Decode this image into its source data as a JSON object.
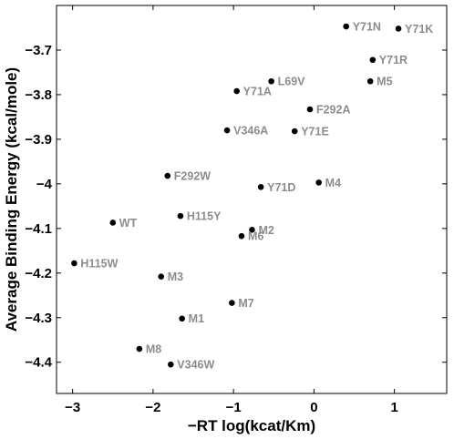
{
  "chart_data": {
    "type": "scatter",
    "xlabel": "−RT log(kcat/Km)",
    "ylabel": "Average Binding Energy (kcal/mole)",
    "xlim": [
      -3.2,
      1.65
    ],
    "ylim": [
      -4.47,
      -3.6
    ],
    "x_ticks": [
      -3,
      -2,
      -1,
      0,
      1
    ],
    "y_ticks": [
      -3.7,
      -3.8,
      -3.9,
      -4,
      -4.1,
      -4.2,
      -4.3,
      -4.4
    ],
    "x_tick_labels": [
      "−3",
      "−2",
      "−1",
      "0",
      "1"
    ],
    "y_tick_labels": [
      "−3.7",
      "−3.8",
      "−3.9",
      "−4",
      "−4.1",
      "−4.2",
      "−4.3",
      "−4.4"
    ],
    "grid": false,
    "points": [
      {
        "label": "Y71N",
        "x": 0.4,
        "y": -3.647
      },
      {
        "label": "Y71K",
        "x": 1.05,
        "y": -3.652
      },
      {
        "label": "Y71R",
        "x": 0.73,
        "y": -3.722
      },
      {
        "label": "L69V",
        "x": -0.53,
        "y": -3.77
      },
      {
        "label": "M5",
        "x": 0.7,
        "y": -3.77
      },
      {
        "label": "Y71A",
        "x": -0.96,
        "y": -3.792
      },
      {
        "label": "F292A",
        "x": -0.05,
        "y": -3.833
      },
      {
        "label": "V346A",
        "x": -1.08,
        "y": -3.88
      },
      {
        "label": "Y71E",
        "x": -0.24,
        "y": -3.882
      },
      {
        "label": "F292W",
        "x": -1.82,
        "y": -3.982
      },
      {
        "label": "M4",
        "x": 0.06,
        "y": -3.997
      },
      {
        "label": "Y71D",
        "x": -0.66,
        "y": -4.007
      },
      {
        "label": "H115Y",
        "x": -1.66,
        "y": -4.072
      },
      {
        "label": "WT",
        "x": -2.5,
        "y": -4.087
      },
      {
        "label": "M2",
        "x": -0.77,
        "y": -4.103
      },
      {
        "label": "M6",
        "x": -0.9,
        "y": -4.117
      },
      {
        "label": "H115W",
        "x": -2.98,
        "y": -4.178
      },
      {
        "label": "M3",
        "x": -1.9,
        "y": -4.208
      },
      {
        "label": "M7",
        "x": -1.02,
        "y": -4.267
      },
      {
        "label": "M1",
        "x": -1.64,
        "y": -4.302
      },
      {
        "label": "M8",
        "x": -2.17,
        "y": -4.37
      },
      {
        "label": "V346W",
        "x": -1.78,
        "y": -4.405
      }
    ]
  }
}
